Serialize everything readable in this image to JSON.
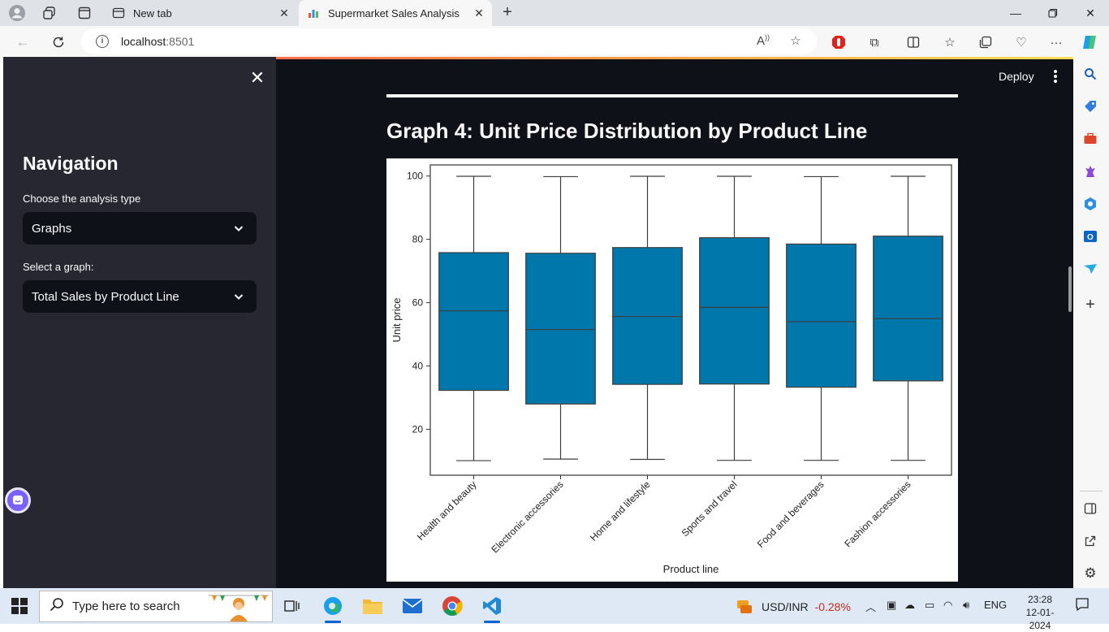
{
  "browser": {
    "tabs": [
      {
        "label": "New tab",
        "active": false
      },
      {
        "label": "Supermarket Sales Analysis",
        "active": true
      }
    ],
    "url_host": "localhost",
    "url_port": ":8501"
  },
  "sidebar": {
    "title": "Navigation",
    "analysis_label": "Choose the analysis type",
    "analysis_value": "Graphs",
    "graph_label": "Select a graph:",
    "graph_value": "Total Sales by Product Line"
  },
  "header": {
    "deploy_label": "Deploy"
  },
  "main": {
    "title": "Graph 4: Unit Price Distribution by Product Line"
  },
  "chart_data": {
    "type": "box",
    "xlabel": "Product line",
    "ylabel": "Unit price",
    "ylim": [
      5.5,
      103.5
    ],
    "yticks": [
      20,
      40,
      60,
      80,
      100
    ],
    "color": "#0077aa",
    "categories": [
      "Health and beauty",
      "Electronic accessories",
      "Home and lifestyle",
      "Sports and travel",
      "Food and beverages",
      "Fashion accessories"
    ],
    "boxes": [
      {
        "min": 10.1,
        "q1": 32.3,
        "median": 57.4,
        "q3": 75.8,
        "max": 99.9
      },
      {
        "min": 10.6,
        "q1": 28.0,
        "median": 51.5,
        "q3": 75.6,
        "max": 99.8
      },
      {
        "min": 10.5,
        "q1": 34.2,
        "median": 55.6,
        "q3": 77.4,
        "max": 99.9
      },
      {
        "min": 10.2,
        "q1": 34.3,
        "median": 58.5,
        "q3": 80.5,
        "max": 99.9
      },
      {
        "min": 10.2,
        "q1": 33.3,
        "median": 54.0,
        "q3": 78.5,
        "max": 99.8
      },
      {
        "min": 10.2,
        "q1": 35.3,
        "median": 55.0,
        "q3": 81.0,
        "max": 99.9
      }
    ]
  },
  "taskbar": {
    "search_placeholder": "Type here to search",
    "ticker_name": "USD/INR",
    "ticker_change": "-0.28%",
    "lang": "ENG",
    "time": "23:28",
    "date": "12-01-2024"
  }
}
